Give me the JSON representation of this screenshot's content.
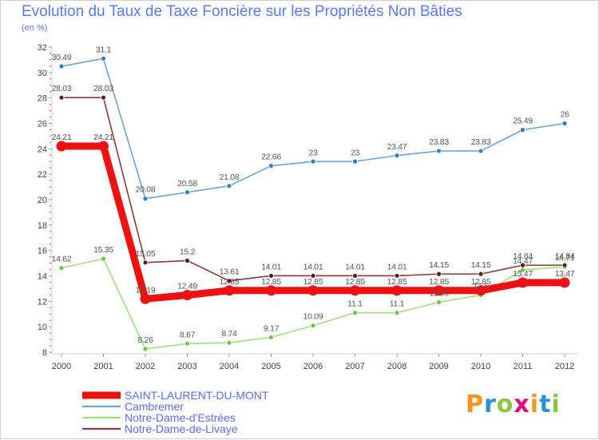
{
  "title": "Evolution du Taux de Taxe Foncière sur les Propriétés Non Bâties",
  "subtitle": "(en %)",
  "brand": {
    "letters": [
      "P",
      "r",
      "o",
      "x",
      "i",
      "t",
      "i"
    ],
    "colors": [
      "#f7931e",
      "#2b8fd6",
      "#8cc63f",
      "#e6007e",
      "#f7931e",
      "#2b8fd6",
      "#8cc63f"
    ]
  },
  "chart_data": {
    "type": "line",
    "title": "Evolution du Taux de Taxe Foncière sur les Propriétés Non Bâties",
    "ylabel": "(en %)",
    "xlabel": "",
    "ylim": [
      8,
      32
    ],
    "yticks": [
      8,
      10,
      12,
      14,
      16,
      18,
      20,
      22,
      24,
      26,
      28,
      30,
      32
    ],
    "categories": [
      "2000",
      "2001",
      "2002",
      "2003",
      "2004",
      "2005",
      "2006",
      "2007",
      "2008",
      "2009",
      "2010",
      "2011",
      "2012"
    ],
    "legend_position": "bottom-left",
    "series": [
      {
        "name": "Cambremer",
        "color": "#6aa3d8",
        "marker": "#2e7fc9",
        "values": [
          30.49,
          31.1,
          20.08,
          20.58,
          21.08,
          22.66,
          23,
          23,
          23.47,
          23.83,
          23.83,
          25.49,
          26
        ],
        "labels": [
          "30.49",
          "31.1",
          "20.08",
          "20.58",
          "21.08",
          "22.66",
          "23",
          "23",
          "23.47",
          "23.83",
          "23.83",
          "25.49",
          "26"
        ]
      },
      {
        "name": "Notre-Dame-d'Estrées",
        "color": "#99e37a",
        "marker": "#6cc640",
        "values": [
          14.62,
          15.35,
          8.26,
          8.67,
          8.74,
          9.17,
          10.09,
          11.1,
          11.1,
          11.93,
          12.5,
          14.47,
          14.71
        ],
        "labels": [
          "14.62",
          "15.35",
          "8.26",
          "8.67",
          "8.74",
          "9.17",
          "10.09",
          "11.1",
          "11.1",
          "11.93",
          "12.5",
          "14.47",
          "14.71"
        ]
      },
      {
        "name": "Notre-Dame-de-Livaye",
        "color": "#8a3a3a",
        "marker": "#5e1b1b",
        "values": [
          28.03,
          28.03,
          15.05,
          15.2,
          13.61,
          14.01,
          14.01,
          14.01,
          14.01,
          14.15,
          14.15,
          14.84,
          14.84
        ],
        "labels": [
          "28.03",
          "28.03",
          "15.05",
          "15.2",
          "13.61",
          "14.01",
          "14.01",
          "14.01",
          "14.01",
          "14.15",
          "14.15",
          "14.84",
          "14.84"
        ]
      },
      {
        "name": "SAINT-LAURENT-DU-MONT",
        "color": "#ee1111",
        "marker": "#ee1111",
        "values": [
          24.21,
          24.21,
          12.19,
          12.49,
          12.85,
          12.85,
          12.85,
          12.85,
          12.85,
          12.85,
          12.85,
          13.47,
          13.47
        ],
        "labels": [
          "24.21",
          "24.21",
          "12.19",
          "12.49",
          "12.85",
          "12.85",
          "12.85",
          "12.85",
          "12.85",
          "12.85",
          "12.85",
          "13.47",
          "13.47"
        ]
      }
    ],
    "legend_order": [
      3,
      0,
      1,
      2
    ]
  }
}
